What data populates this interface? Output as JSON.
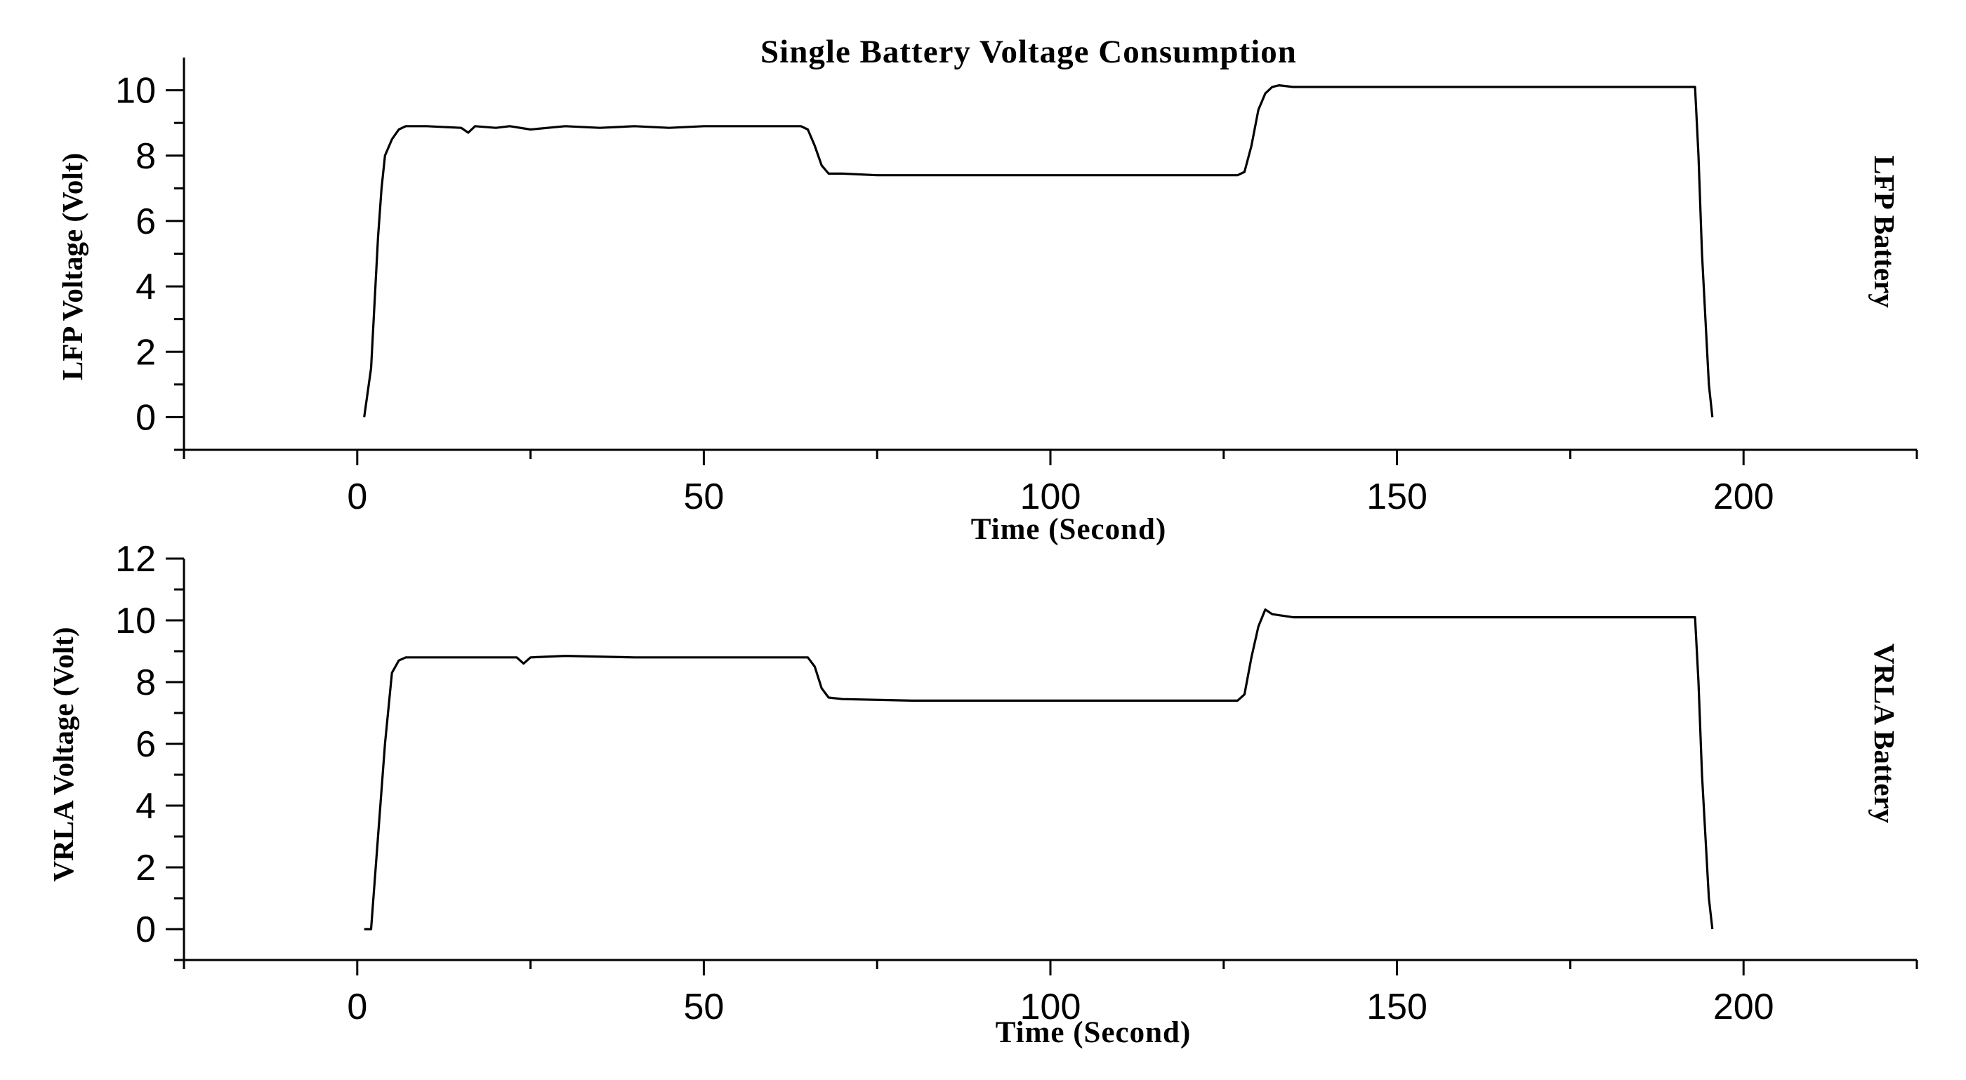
{
  "chart_data": [
    {
      "type": "line",
      "title": "Single Battery Voltage Consumption",
      "xlabel": "Time (Second)",
      "ylabel": "LFP Voltage (Volt)",
      "side_label": "LFP Battery",
      "xlim": [
        -25,
        225
      ],
      "ylim": [
        -1,
        11
      ],
      "xticks": [
        0,
        50,
        100,
        150,
        200
      ],
      "yticks": [
        0,
        2,
        4,
        6,
        8,
        10
      ],
      "grid": false,
      "series": [
        {
          "x": [
            1,
            2,
            3,
            3.5,
            4,
            5,
            6,
            7,
            8,
            10,
            15,
            16,
            17,
            20,
            22,
            25,
            30,
            35,
            40,
            45,
            50,
            55,
            60,
            64,
            65,
            66,
            67,
            68,
            70,
            75,
            80,
            90,
            100,
            110,
            120,
            125,
            127,
            128,
            129,
            130,
            131,
            132,
            133,
            135,
            140,
            150,
            160,
            170,
            180,
            190,
            192,
            193,
            193.5,
            194,
            195,
            195.5
          ],
          "values": [
            0,
            1.5,
            5.5,
            7,
            8.0,
            8.5,
            8.8,
            8.9,
            8.9,
            8.9,
            8.85,
            8.7,
            8.9,
            8.85,
            8.9,
            8.8,
            8.9,
            8.85,
            8.9,
            8.85,
            8.9,
            8.9,
            8.9,
            8.9,
            8.8,
            8.3,
            7.7,
            7.45,
            7.45,
            7.4,
            7.4,
            7.4,
            7.4,
            7.4,
            7.4,
            7.4,
            7.4,
            7.5,
            8.3,
            9.4,
            9.9,
            10.1,
            10.15,
            10.1,
            10.1,
            10.1,
            10.1,
            10.1,
            10.1,
            10.1,
            10.1,
            10.1,
            8.0,
            5.0,
            1.0,
            0
          ]
        }
      ]
    },
    {
      "type": "line",
      "xlabel": "Time (Second)",
      "ylabel": "VRLA Voltage (Volt)",
      "side_label": "VRLA Battery",
      "xlim": [
        -25,
        225
      ],
      "ylim": [
        -1,
        12
      ],
      "xticks": [
        0,
        50,
        100,
        150,
        200
      ],
      "yticks": [
        0,
        2,
        4,
        6,
        8,
        10,
        12
      ],
      "grid": false,
      "series": [
        {
          "x": [
            1,
            2,
            3,
            4,
            5,
            6,
            7,
            8,
            10,
            15,
            20,
            23,
            24,
            25,
            30,
            40,
            50,
            60,
            65,
            66,
            67,
            68,
            70,
            80,
            90,
            100,
            110,
            120,
            125,
            127,
            128,
            129,
            130,
            131,
            132,
            135,
            140,
            150,
            160,
            170,
            180,
            190,
            192,
            193,
            193.5,
            194,
            195,
            195.5
          ],
          "values": [
            0,
            0,
            3,
            6,
            8.3,
            8.7,
            8.8,
            8.8,
            8.8,
            8.8,
            8.8,
            8.8,
            8.6,
            8.8,
            8.85,
            8.8,
            8.8,
            8.8,
            8.8,
            8.5,
            7.8,
            7.5,
            7.45,
            7.4,
            7.4,
            7.4,
            7.4,
            7.4,
            7.4,
            7.4,
            7.6,
            8.8,
            9.8,
            10.35,
            10.2,
            10.1,
            10.1,
            10.1,
            10.1,
            10.1,
            10.1,
            10.1,
            10.1,
            10.1,
            8.0,
            5.0,
            1.0,
            0
          ]
        }
      ]
    }
  ]
}
